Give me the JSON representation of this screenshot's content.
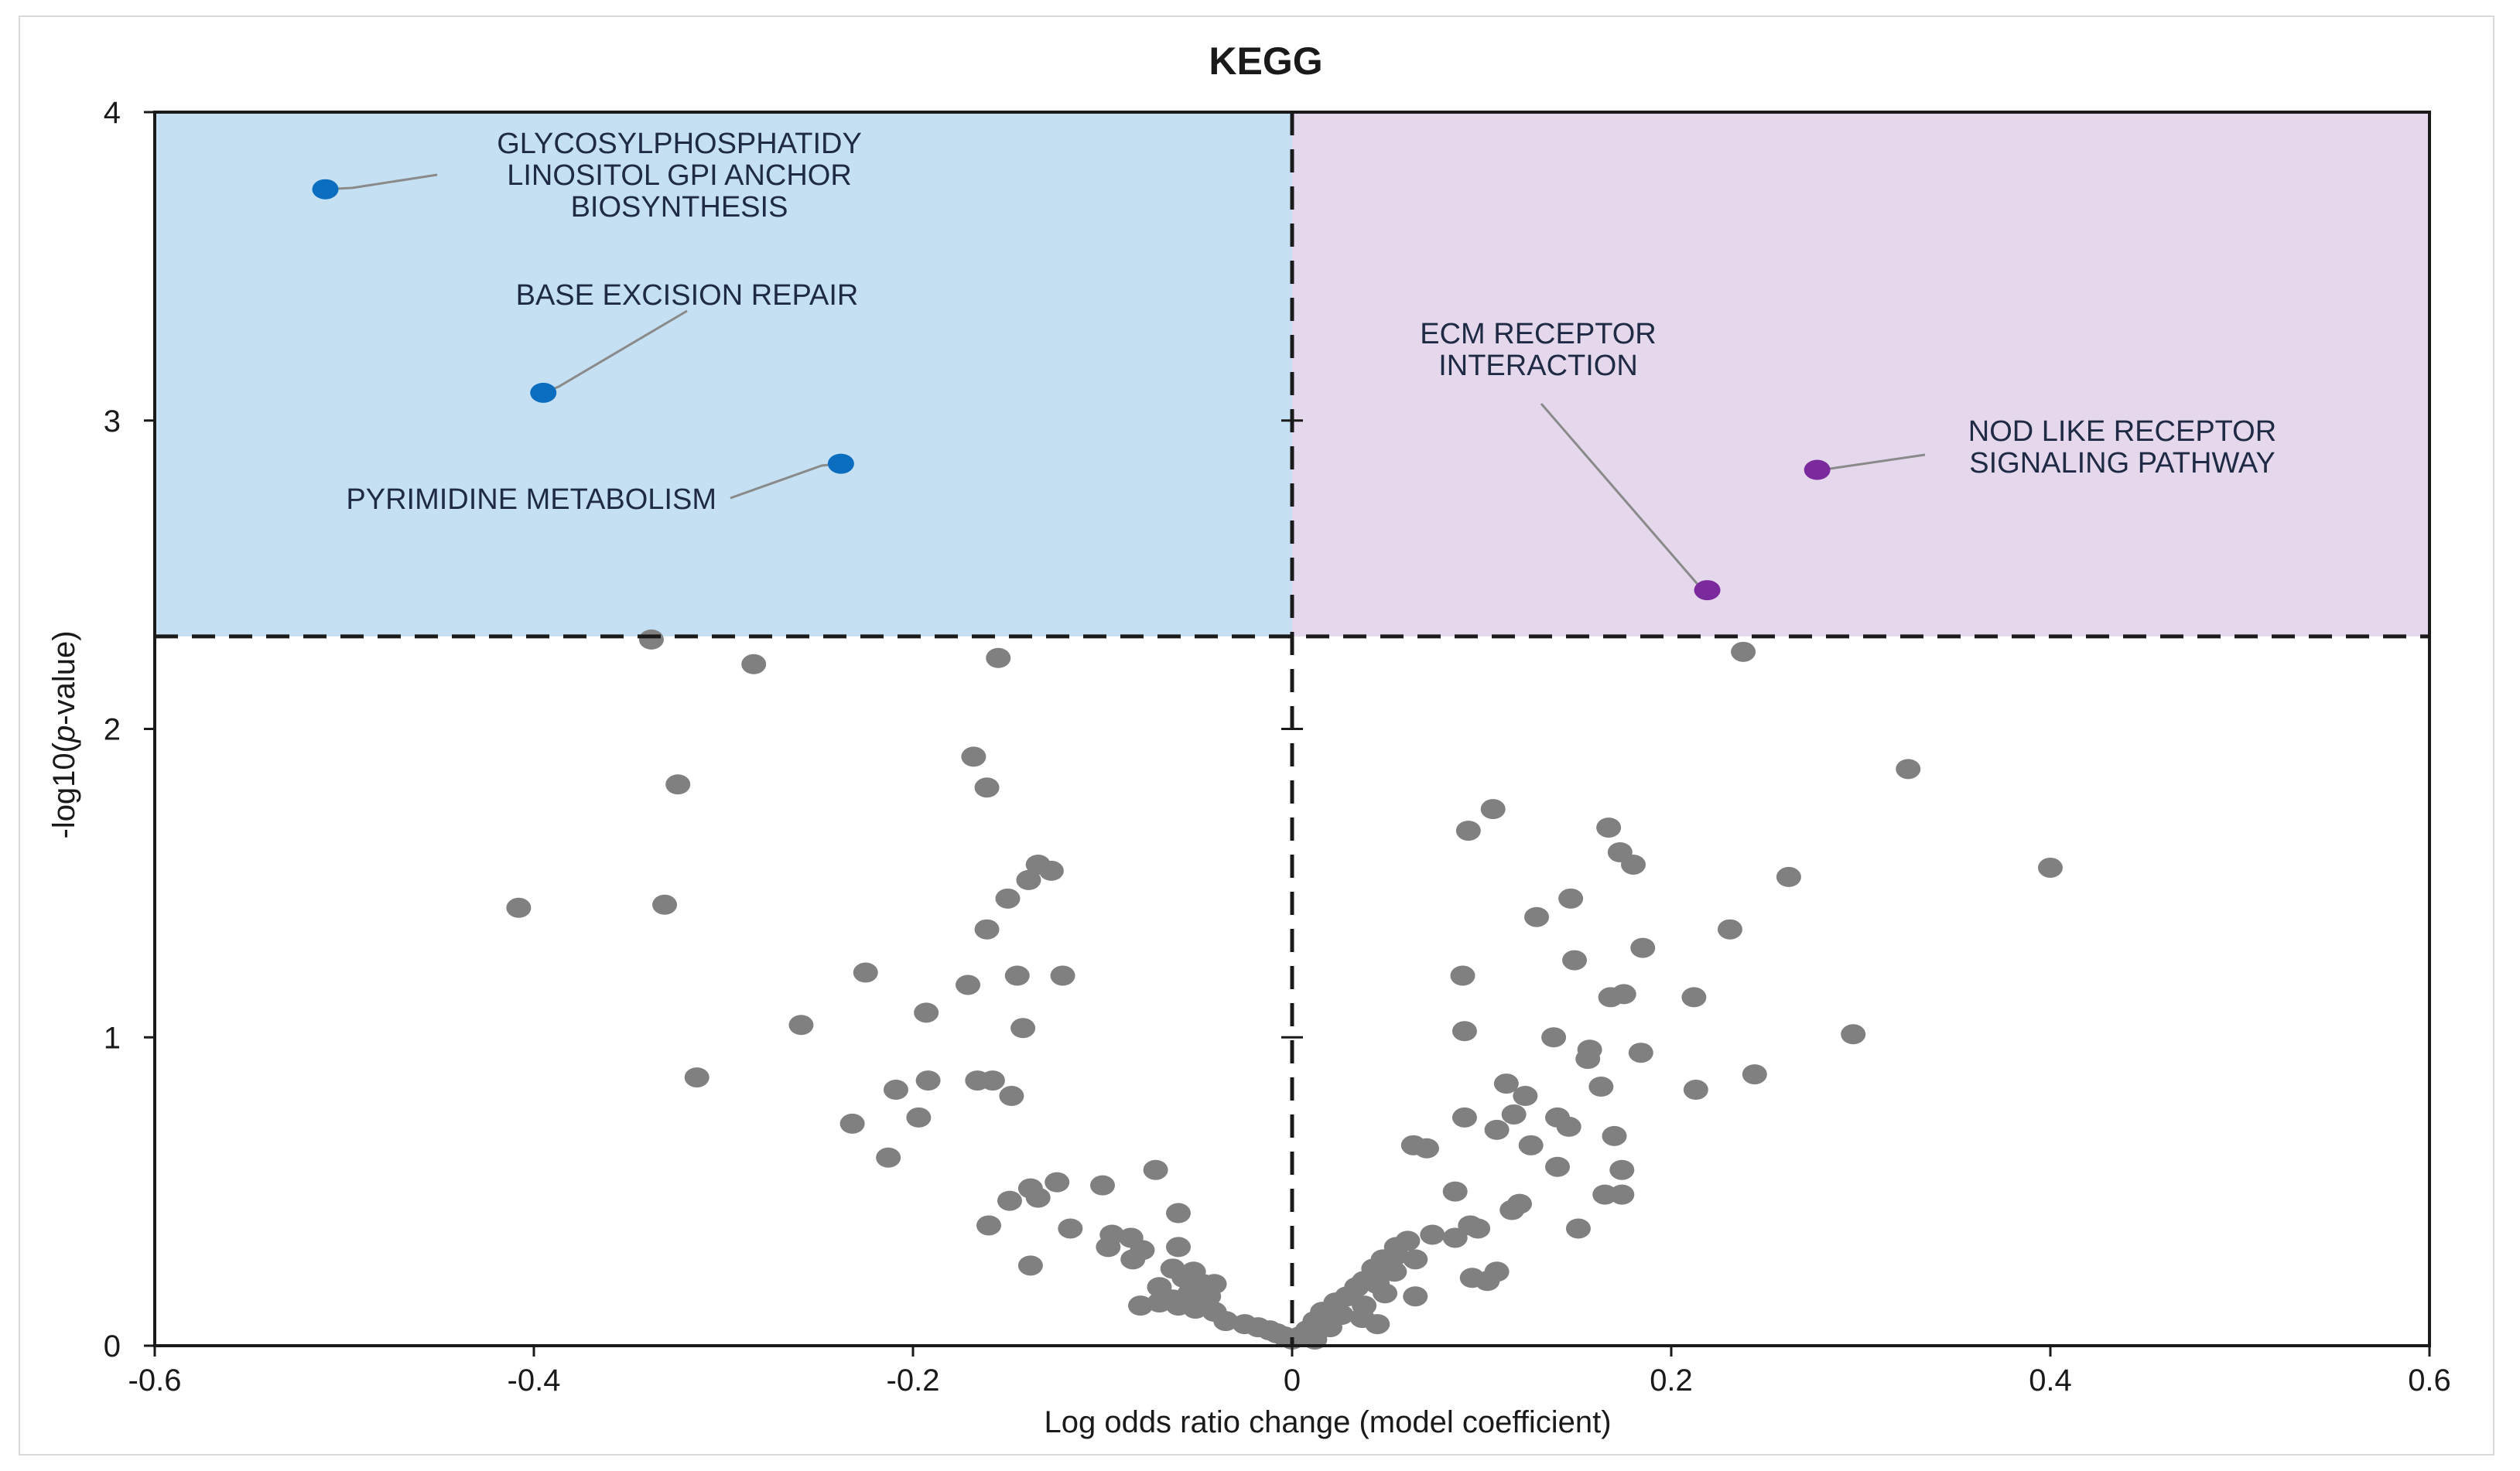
{
  "chart_data": {
    "type": "scatter",
    "title": "KEGG",
    "xlabel": "Log odds ratio change (model coefficient)",
    "ylabel": "-log10(p-value)",
    "xlim": [
      -0.6,
      0.6
    ],
    "ylim": [
      0,
      4
    ],
    "xticks": [
      -0.6,
      -0.4,
      -0.2,
      0,
      0.2,
      0.4,
      0.6
    ],
    "xtick_labels": [
      "-0.6",
      "-0.4",
      "-0.2",
      "0",
      "0.2",
      "0.4",
      "0.6"
    ],
    "yticks": [
      0,
      1,
      2,
      3,
      4
    ],
    "ytick_labels": [
      "0",
      "1",
      "2",
      "3",
      "4"
    ],
    "threshold_y": 2.3,
    "threshold_x": 0,
    "colors": {
      "left_region": "#c5e0f2",
      "right_region": "#e6d8ec",
      "point": "#808080",
      "blue_highlight": "#0b6dbf",
      "purple_highlight": "#7b2a9e",
      "annotation_line": "#8a8a8a"
    },
    "highlighted": [
      {
        "x": -0.51,
        "y": 3.75,
        "color": "blue",
        "label_lines": [
          "GLYCOSYLPHOSPHATIDY",
          "LINOSITOL GPI ANCHOR",
          "BIOSYNTHESIS"
        ]
      },
      {
        "x": -0.395,
        "y": 3.09,
        "color": "blue",
        "label_lines": [
          "BASE EXCISION REPAIR"
        ]
      },
      {
        "x": -0.238,
        "y": 2.86,
        "color": "blue",
        "label_lines": [
          "PYRIMIDINE METABOLISM"
        ]
      },
      {
        "x": 0.219,
        "y": 2.45,
        "color": "purple",
        "label_lines": [
          "ECM RECEPTOR",
          "INTERACTION"
        ]
      },
      {
        "x": 0.277,
        "y": 2.84,
        "color": "purple",
        "label_lines": [
          "NOD LIKE RECEPTOR",
          "SIGNALING PATHWAY"
        ]
      }
    ],
    "points": [
      [
        -0.338,
        2.29
      ],
      [
        -0.284,
        2.21
      ],
      [
        -0.155,
        2.23
      ],
      [
        -0.324,
        1.82
      ],
      [
        -0.408,
        1.42
      ],
      [
        -0.331,
        1.43
      ],
      [
        -0.168,
        1.91
      ],
      [
        -0.161,
        1.81
      ],
      [
        -0.134,
        1.56
      ],
      [
        -0.127,
        1.54
      ],
      [
        -0.139,
        1.51
      ],
      [
        -0.15,
        1.45
      ],
      [
        -0.161,
        1.35
      ],
      [
        -0.225,
        1.21
      ],
      [
        -0.171,
        1.17
      ],
      [
        -0.145,
        1.2
      ],
      [
        -0.121,
        1.2
      ],
      [
        -0.193,
        1.08
      ],
      [
        -0.259,
        1.04
      ],
      [
        -0.142,
        1.03
      ],
      [
        -0.314,
        0.87
      ],
      [
        -0.192,
        0.86
      ],
      [
        -0.166,
        0.86
      ],
      [
        -0.158,
        0.86
      ],
      [
        -0.209,
        0.83
      ],
      [
        -0.148,
        0.81
      ],
      [
        -0.197,
        0.74
      ],
      [
        -0.232,
        0.72
      ],
      [
        -0.213,
        0.61
      ],
      [
        -0.072,
        0.57
      ],
      [
        -0.124,
        0.53
      ],
      [
        -0.138,
        0.51
      ],
      [
        -0.134,
        0.48
      ],
      [
        -0.149,
        0.47
      ],
      [
        -0.1,
        0.52
      ],
      [
        -0.06,
        0.43
      ],
      [
        -0.16,
        0.39
      ],
      [
        -0.117,
        0.38
      ],
      [
        -0.095,
        0.36
      ],
      [
        -0.085,
        0.35
      ],
      [
        -0.079,
        0.31
      ],
      [
        -0.097,
        0.32
      ],
      [
        -0.06,
        0.32
      ],
      [
        -0.084,
        0.28
      ],
      [
        -0.063,
        0.25
      ],
      [
        -0.052,
        0.24
      ],
      [
        -0.057,
        0.22
      ],
      [
        -0.047,
        0.2
      ],
      [
        -0.041,
        0.2
      ],
      [
        -0.07,
        0.19
      ],
      [
        -0.054,
        0.17
      ],
      [
        -0.044,
        0.16
      ],
      [
        -0.063,
        0.15
      ],
      [
        -0.06,
        0.13
      ],
      [
        -0.08,
        0.13
      ],
      [
        -0.07,
        0.14
      ],
      [
        -0.051,
        0.12
      ],
      [
        -0.041,
        0.11
      ],
      [
        -0.035,
        0.08
      ],
      [
        -0.025,
        0.07
      ],
      [
        -0.018,
        0.06
      ],
      [
        -0.012,
        0.05
      ],
      [
        -0.008,
        0.04
      ],
      [
        -0.004,
        0.03
      ],
      [
        0.0,
        0.02
      ],
      [
        0.004,
        0.03
      ],
      [
        -0.138,
        0.26
      ],
      [
        0.238,
        2.25
      ],
      [
        0.325,
        1.87
      ],
      [
        0.4,
        1.55
      ],
      [
        0.106,
        1.74
      ],
      [
        0.093,
        1.67
      ],
      [
        0.167,
        1.68
      ],
      [
        0.173,
        1.6
      ],
      [
        0.18,
        1.56
      ],
      [
        0.262,
        1.52
      ],
      [
        0.147,
        1.45
      ],
      [
        0.129,
        1.39
      ],
      [
        0.231,
        1.35
      ],
      [
        0.185,
        1.29
      ],
      [
        0.149,
        1.25
      ],
      [
        0.09,
        1.2
      ],
      [
        0.175,
        1.14
      ],
      [
        0.168,
        1.13
      ],
      [
        0.212,
        1.13
      ],
      [
        0.138,
        1.0
      ],
      [
        0.091,
        1.02
      ],
      [
        0.157,
        0.96
      ],
      [
        0.184,
        0.95
      ],
      [
        0.156,
        0.93
      ],
      [
        0.296,
        1.01
      ],
      [
        0.244,
        0.88
      ],
      [
        0.113,
        0.85
      ],
      [
        0.163,
        0.84
      ],
      [
        0.123,
        0.81
      ],
      [
        0.213,
        0.83
      ],
      [
        0.117,
        0.75
      ],
      [
        0.14,
        0.74
      ],
      [
        0.091,
        0.74
      ],
      [
        0.146,
        0.71
      ],
      [
        0.108,
        0.7
      ],
      [
        0.17,
        0.68
      ],
      [
        0.126,
        0.65
      ],
      [
        0.064,
        0.65
      ],
      [
        0.071,
        0.64
      ],
      [
        0.14,
        0.58
      ],
      [
        0.174,
        0.57
      ],
      [
        0.165,
        0.49
      ],
      [
        0.174,
        0.49
      ],
      [
        0.086,
        0.5
      ],
      [
        0.12,
        0.46
      ],
      [
        0.116,
        0.44
      ],
      [
        0.094,
        0.39
      ],
      [
        0.098,
        0.38
      ],
      [
        0.151,
        0.38
      ],
      [
        0.074,
        0.36
      ],
      [
        0.086,
        0.35
      ],
      [
        0.061,
        0.34
      ],
      [
        0.055,
        0.32
      ],
      [
        0.054,
        0.29
      ],
      [
        0.065,
        0.28
      ],
      [
        0.048,
        0.28
      ],
      [
        0.043,
        0.25
      ],
      [
        0.054,
        0.24
      ],
      [
        0.038,
        0.21
      ],
      [
        0.045,
        0.2
      ],
      [
        0.034,
        0.19
      ],
      [
        0.049,
        0.17
      ],
      [
        0.029,
        0.16
      ],
      [
        0.065,
        0.16
      ],
      [
        0.023,
        0.14
      ],
      [
        0.038,
        0.13
      ],
      [
        0.016,
        0.11
      ],
      [
        0.026,
        0.1
      ],
      [
        0.037,
        0.09
      ],
      [
        0.045,
        0.07
      ],
      [
        0.012,
        0.08
      ],
      [
        0.02,
        0.06
      ],
      [
        0.008,
        0.05
      ],
      [
        0.005,
        0.03
      ],
      [
        0.095,
        0.22
      ],
      [
        0.103,
        0.21
      ],
      [
        0.108,
        0.24
      ],
      [
        0.012,
        0.02
      ]
    ]
  }
}
